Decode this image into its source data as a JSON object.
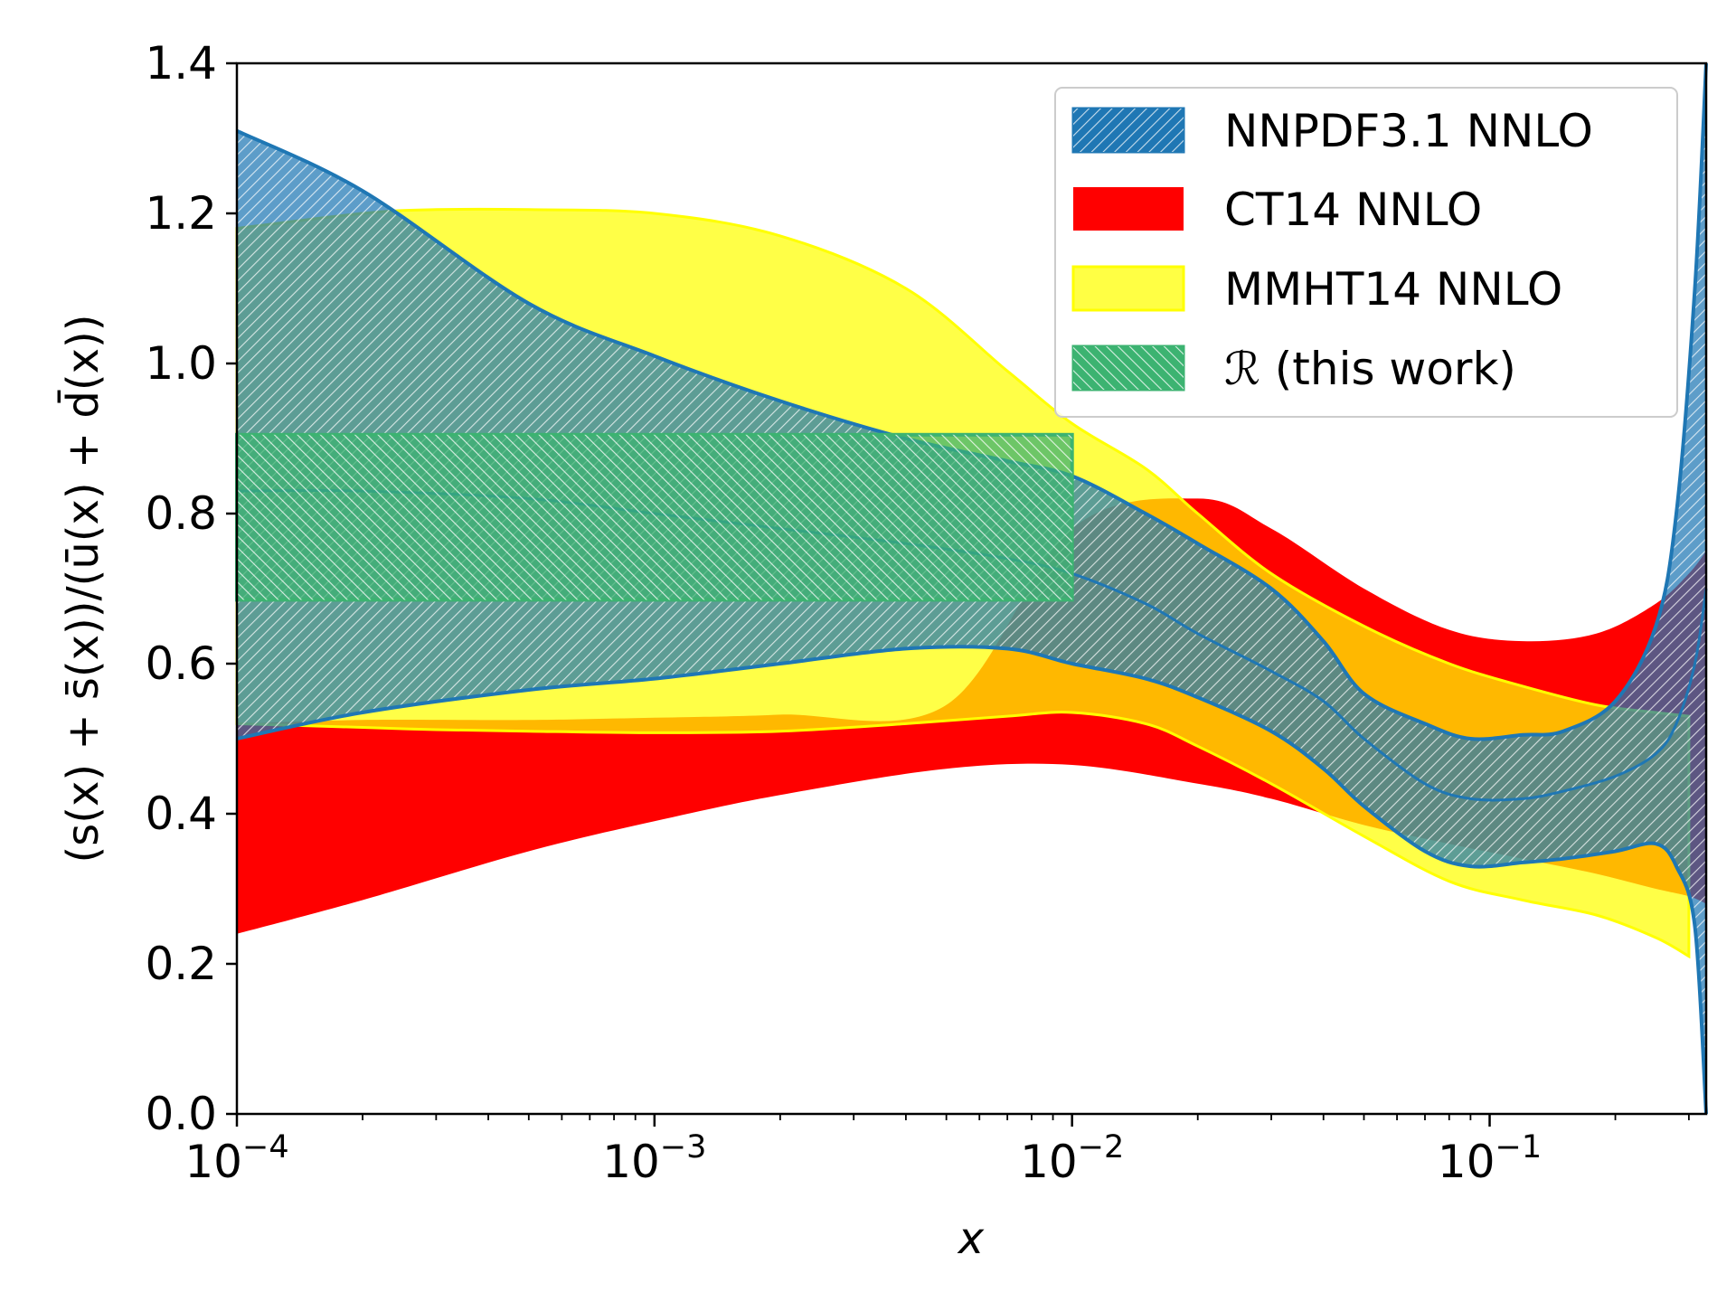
{
  "chart_data": {
    "type": "area",
    "xscale": "log",
    "xlim": [
      0.0001,
      0.33
    ],
    "ylim": [
      0.0,
      1.4
    ],
    "xlabel": "x",
    "ylabel": "(s(x) + s̄(x))/(ū(x) + d̄(x))",
    "x_ticks": [
      {
        "value": 0.0001,
        "base": "10",
        "exp": "−4"
      },
      {
        "value": 0.001,
        "base": "10",
        "exp": "−3"
      },
      {
        "value": 0.01,
        "base": "10",
        "exp": "−2"
      },
      {
        "value": 0.1,
        "base": "10",
        "exp": "−1"
      }
    ],
    "y_ticks": [
      "0.0",
      "0.2",
      "0.4",
      "0.6",
      "0.8",
      "1.0",
      "1.2",
      "1.4"
    ],
    "legend_position": "top-right",
    "series": [
      {
        "name": "CT14 NNLO",
        "key": "ct14",
        "color": "#ff0000",
        "x": [
          0.0001,
          0.0002,
          0.0005,
          0.001,
          0.002,
          0.005,
          0.01,
          0.02,
          0.03,
          0.05,
          0.08,
          0.12,
          0.18,
          0.25,
          0.3,
          0.33
        ],
        "upper": [
          0.52,
          0.525,
          0.525,
          0.528,
          0.532,
          0.545,
          0.78,
          0.82,
          0.78,
          0.7,
          0.645,
          0.63,
          0.64,
          0.68,
          0.72,
          0.75
        ],
        "lower": [
          0.24,
          0.285,
          0.35,
          0.39,
          0.425,
          0.46,
          0.465,
          0.44,
          0.42,
          0.385,
          0.36,
          0.34,
          0.32,
          0.3,
          0.29,
          0.28
        ]
      },
      {
        "name": "MMHT14 NNLO",
        "key": "mmht14",
        "color": "#ffff00",
        "x": [
          0.0001,
          0.0002,
          0.0003,
          0.0005,
          0.001,
          0.002,
          0.004,
          0.007,
          0.01,
          0.015,
          0.02,
          0.03,
          0.05,
          0.08,
          0.12,
          0.18,
          0.25,
          0.3
        ],
        "upper": [
          1.18,
          1.2,
          1.205,
          1.205,
          1.2,
          1.17,
          1.1,
          0.99,
          0.92,
          0.86,
          0.8,
          0.72,
          0.65,
          0.6,
          0.57,
          0.545,
          0.535,
          0.53
        ],
        "lower": [
          0.52,
          0.515,
          0.512,
          0.51,
          0.508,
          0.51,
          0.52,
          0.53,
          0.535,
          0.52,
          0.49,
          0.44,
          0.37,
          0.31,
          0.285,
          0.265,
          0.235,
          0.21
        ]
      },
      {
        "name": "NNPDF3.1 NNLO",
        "key": "nnpdf31",
        "color": "#1f77b4",
        "x": [
          0.0001,
          0.0002,
          0.0005,
          0.001,
          0.002,
          0.004,
          0.007,
          0.01,
          0.015,
          0.02,
          0.03,
          0.04,
          0.05,
          0.07,
          0.09,
          0.12,
          0.15,
          0.2,
          0.25,
          0.28,
          0.31,
          0.33
        ],
        "upper": [
          1.31,
          1.23,
          1.08,
          1.01,
          0.95,
          0.9,
          0.87,
          0.85,
          0.8,
          0.76,
          0.7,
          0.63,
          0.56,
          0.52,
          0.5,
          0.505,
          0.51,
          0.55,
          0.65,
          0.8,
          1.1,
          1.4
        ],
        "lower": [
          0.5,
          0.535,
          0.565,
          0.58,
          0.6,
          0.62,
          0.62,
          0.6,
          0.58,
          0.555,
          0.51,
          0.46,
          0.41,
          0.35,
          0.33,
          0.335,
          0.34,
          0.35,
          0.36,
          0.33,
          0.25,
          0.0
        ],
        "central": [
          0.83,
          0.83,
          0.82,
          0.8,
          0.78,
          0.76,
          0.74,
          0.72,
          0.68,
          0.64,
          0.59,
          0.55,
          0.5,
          0.44,
          0.42,
          0.42,
          0.43,
          0.45,
          0.48,
          0.52,
          0.6,
          0.7
        ]
      },
      {
        "name": "ℛ (this work)",
        "key": "this_work",
        "color": "#3cb371",
        "x_range": [
          0.0001,
          0.01
        ],
        "lower": 0.685,
        "upper": 0.905
      }
    ]
  }
}
